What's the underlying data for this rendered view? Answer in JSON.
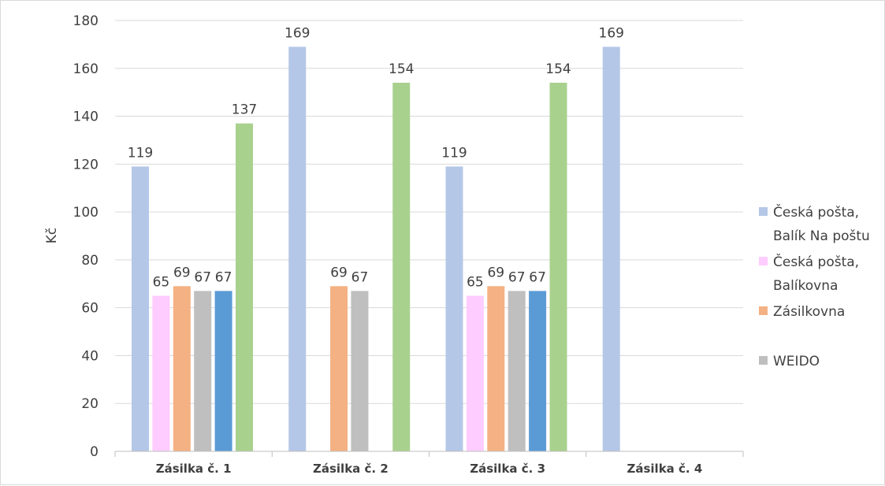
{
  "chart_data": {
    "type": "bar",
    "title": "",
    "xlabel": "",
    "ylabel": "Kč",
    "ylim": [
      0,
      180
    ],
    "ytick_step": 20,
    "grid": true,
    "legend_position": "right",
    "categories": [
      "Zásilka č. 1",
      "Zásilka č. 2",
      "Zásilka č. 3",
      "Zásilka č. 4"
    ],
    "series": [
      {
        "name": "Česká pošta, Balík Na poštu",
        "legend_lines": [
          "Česká pošta,",
          "Balík Na poštu"
        ],
        "color": "#b4c7e7",
        "in_legend": true,
        "values": [
          119,
          169,
          119,
          169
        ]
      },
      {
        "name": "Česká pošta, Balíkovna",
        "legend_lines": [
          "Česká pošta,",
          "Balíkovna"
        ],
        "color": "#ffccff",
        "in_legend": true,
        "values": [
          65,
          null,
          65,
          null
        ]
      },
      {
        "name": "Zásilkovna",
        "legend_lines": [
          "Zásilkovna"
        ],
        "color": "#f4b183",
        "in_legend": true,
        "values": [
          69,
          69,
          69,
          null
        ]
      },
      {
        "name": "WEIDO",
        "legend_lines": [
          "WEIDO"
        ],
        "color": "#bfbfbf",
        "in_legend": true,
        "values": [
          67,
          67,
          67,
          null
        ]
      },
      {
        "name": "",
        "legend_lines": [],
        "color": "#5b9bd5",
        "in_legend": false,
        "values": [
          67,
          null,
          67,
          null
        ]
      },
      {
        "name": "",
        "legend_lines": [],
        "color": "#a9d18e",
        "in_legend": false,
        "values": [
          137,
          154,
          154,
          null
        ]
      }
    ]
  }
}
